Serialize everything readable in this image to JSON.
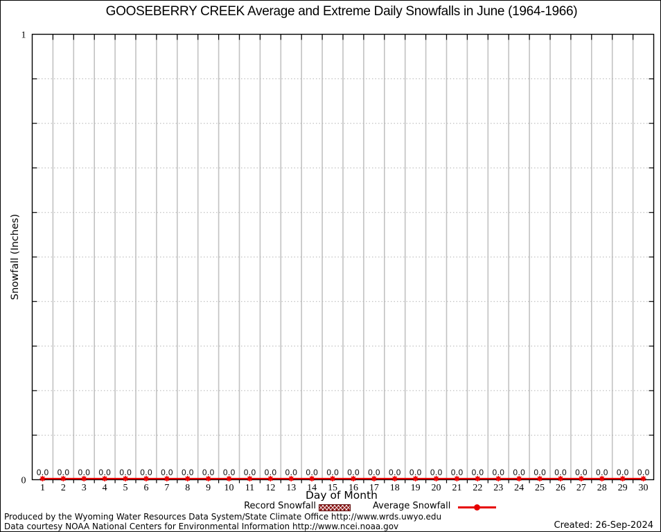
{
  "chart_data": {
    "type": "line",
    "title": "GOOSEBERRY CREEK Average and Extreme Daily Snowfalls in June (1964-1966)",
    "xlabel": "Day of Month",
    "ylabel": "Snowfall (Inches)",
    "ylim": [
      0,
      1
    ],
    "ytick_labels": [
      "0",
      "1"
    ],
    "x": [
      1,
      2,
      3,
      4,
      5,
      6,
      7,
      8,
      9,
      10,
      11,
      12,
      13,
      14,
      15,
      16,
      17,
      18,
      19,
      20,
      21,
      22,
      23,
      24,
      25,
      26,
      27,
      28,
      29,
      30
    ],
    "series": [
      {
        "name": "Record Snowfall",
        "type": "bar",
        "color": "#8b1111",
        "values": [
          0,
          0,
          0,
          0,
          0,
          0,
          0,
          0,
          0,
          0,
          0,
          0,
          0,
          0,
          0,
          0,
          0,
          0,
          0,
          0,
          0,
          0,
          0,
          0,
          0,
          0,
          0,
          0,
          0,
          0
        ]
      },
      {
        "name": "Average Snowfall",
        "type": "line",
        "color": "#e60000",
        "values": [
          0,
          0,
          0,
          0,
          0,
          0,
          0,
          0,
          0,
          0,
          0,
          0,
          0,
          0,
          0,
          0,
          0,
          0,
          0,
          0,
          0,
          0,
          0,
          0,
          0,
          0,
          0,
          0,
          0,
          0
        ],
        "point_labels": [
          "0.0",
          "0.0",
          "0.0",
          "0.0",
          "0.0",
          "0.0",
          "0.0",
          "0.0",
          "0.0",
          "0.0",
          "0.0",
          "0.0",
          "0.0",
          "0.0",
          "0.0",
          "0.0",
          "0.0",
          "0.0",
          "0.0",
          "0.0",
          "0.0",
          "0.0",
          "0.0",
          "0.0",
          "0.0",
          "0.0",
          "0.0",
          "0.0",
          "0.0",
          "0.0"
        ]
      }
    ],
    "legend_position": "bottom-center",
    "grid": {
      "vertical": "solid",
      "horizontal": "dotted",
      "y_step": 0.1
    },
    "colors": {
      "average_line": "#e60000",
      "record_fill": "#8b1111",
      "grid_vertical": "#c2c2c2",
      "grid_dotted": "#b2b2b2",
      "axis": "#000000"
    }
  },
  "footer": {
    "line1": "Produced by the Wyoming Water Resources Data System/State Climate Office http://www.wrds.uwyo.edu",
    "line2": "Data courtesy NOAA National Centers for Environmental Information http://www.ncei.noaa.gov",
    "created": "Created: 26-Sep-2024"
  }
}
